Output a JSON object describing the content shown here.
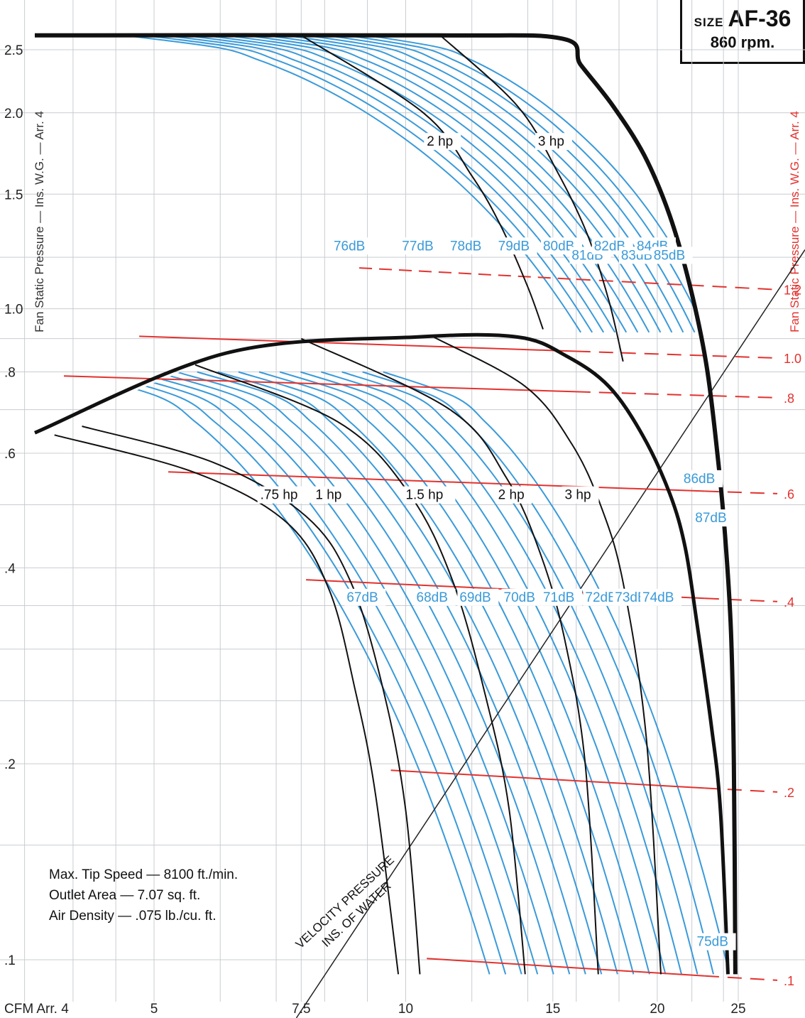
{
  "chart_data": {
    "type": "line",
    "title": "SIZE AF-36",
    "subtitle": "860 rpm.",
    "xlabel": "CFM Arr. 4",
    "ylabel": "Fan Static Pressure — Ins. W.G. — Arr. 4",
    "ylabel_right": "Fan Static Pressure — Ins. W.G. — Arr. 4",
    "x_ticks": [
      "5",
      "7.5",
      "10",
      "15",
      "20",
      "25"
    ],
    "y_ticks_left": [
      "2.5",
      "2.0",
      "1.5",
      "1.0",
      ".8",
      ".6",
      ".4",
      ".2",
      ".1"
    ],
    "y_ticks_right": [
      "1.2",
      "1.0",
      ".8",
      ".6",
      ".4",
      ".2",
      ".1"
    ],
    "upper_envelope": [
      [
        3.6,
        2.63
      ],
      [
        10.9,
        2.63
      ],
      [
        15.4,
        2.6
      ],
      [
        16.2,
        2.37
      ],
      [
        17.7,
        2.05
      ],
      [
        19.3,
        1.72
      ],
      [
        20.7,
        1.39
      ],
      [
        21.9,
        1.08
      ],
      [
        22.9,
        0.82
      ],
      [
        23.6,
        0.6
      ],
      [
        24.1,
        0.45
      ],
      [
        24.5,
        0.32
      ],
      [
        24.7,
        0.2
      ],
      [
        24.8,
        0.095
      ]
    ],
    "lower_envelope": [
      [
        3.6,
        0.645
      ],
      [
        6.1,
        0.855
      ],
      [
        10.3,
        0.905
      ],
      [
        13.6,
        0.905
      ],
      [
        15.6,
        0.845
      ],
      [
        17.5,
        0.76
      ],
      [
        19.2,
        0.64
      ],
      [
        20.7,
        0.52
      ],
      [
        21.6,
        0.43
      ],
      [
        22.3,
        0.33
      ],
      [
        23.2,
        0.23
      ],
      [
        23.8,
        0.17
      ],
      [
        24.3,
        0.095
      ]
    ],
    "hp_curves": [
      {
        "label": "2 hp",
        "points": [
          [
            7.5,
            2.63
          ],
          [
            10.5,
            2.0
          ],
          [
            12.0,
            1.6
          ],
          [
            13.0,
            1.34
          ],
          [
            14.0,
            1.08
          ],
          [
            14.6,
            0.93
          ]
        ]
      },
      {
        "label": "3 hp",
        "points": [
          [
            11.0,
            2.63
          ],
          [
            13.6,
            2.05
          ],
          [
            15.2,
            1.62
          ],
          [
            16.5,
            1.3
          ],
          [
            17.5,
            1.03
          ],
          [
            18.2,
            0.83
          ]
        ]
      },
      {
        "label": ".75 hp",
        "points": [
          [
            3.8,
            0.64
          ],
          [
            5.6,
            0.56
          ],
          [
            7.2,
            0.47
          ],
          [
            8.1,
            0.37
          ],
          [
            8.7,
            0.26
          ],
          [
            9.2,
            0.18
          ],
          [
            9.8,
            0.095
          ]
        ]
      },
      {
        "label": "1 hp",
        "points": [
          [
            4.1,
            0.66
          ],
          [
            5.9,
            0.58
          ],
          [
            7.6,
            0.48
          ],
          [
            8.6,
            0.38
          ],
          [
            9.4,
            0.26
          ],
          [
            10.0,
            0.17
          ],
          [
            10.4,
            0.095
          ]
        ]
      },
      {
        "label": "1.5 hp",
        "points": [
          [
            5.6,
            0.82
          ],
          [
            8.3,
            0.67
          ],
          [
            10.1,
            0.52
          ],
          [
            11.4,
            0.38
          ],
          [
            12.5,
            0.25
          ],
          [
            13.3,
            0.17
          ],
          [
            13.9,
            0.095
          ]
        ]
      },
      {
        "label": "2 hp",
        "points": [
          [
            7.5,
            0.9
          ],
          [
            11.3,
            0.7
          ],
          [
            13.2,
            0.55
          ],
          [
            14.5,
            0.42
          ],
          [
            15.5,
            0.31
          ],
          [
            16.4,
            0.2
          ],
          [
            17.0,
            0.095
          ]
        ]
      },
      {
        "label": "3 hp",
        "points": [
          [
            10.8,
            0.905
          ],
          [
            13.9,
            0.76
          ],
          [
            15.8,
            0.62
          ],
          [
            17.1,
            0.5
          ],
          [
            18.2,
            0.38
          ],
          [
            19.4,
            0.22
          ],
          [
            20.2,
            0.095
          ]
        ]
      }
    ],
    "db_labels_upper": [
      "76dB",
      "77dB",
      "78dB",
      "79dB",
      "80dB",
      "81dB",
      "82dB",
      "83dB",
      "84dB",
      "85dB"
    ],
    "db_labels_lower": [
      "67dB",
      "68dB",
      "69dB",
      "70dB",
      "71dB",
      "72dB",
      "73dB",
      "74dB",
      "75dB",
      "86dB",
      "87dB"
    ],
    "velocity_pressure_lines": [
      {
        "label": "1.2",
        "sp_at_vp_line": 1.07
      },
      {
        "label": "1.0",
        "sp_at_vp_line": 0.84
      },
      {
        "label": ".8",
        "sp_at_vp_line": 0.73
      },
      {
        "label": ".6",
        "sp_at_vp_line": 0.52
      },
      {
        "label": ".4",
        "sp_at_vp_line": 0.355
      },
      {
        "label": ".2",
        "sp_at_vp_line": 0.181
      },
      {
        "label": ".1",
        "sp_at_vp_line": 0.093
      }
    ],
    "velocity_pressure_title": [
      "VELOCITY PRESSURE",
      "INS. OF WATER"
    ],
    "notes": [
      "Max. Tip Speed — 8100 ft./min.",
      "Outlet Area — 7.07 sq. ft.",
      "Air Density — .075 lb./cu. ft."
    ],
    "x_scale": "log",
    "y_scale": "log",
    "grid": true,
    "colors": {
      "db_curves": "#3a9ad9",
      "hp_curves": "#111111",
      "vp_lines": "#e2322e",
      "envelope": "#111111"
    }
  }
}
